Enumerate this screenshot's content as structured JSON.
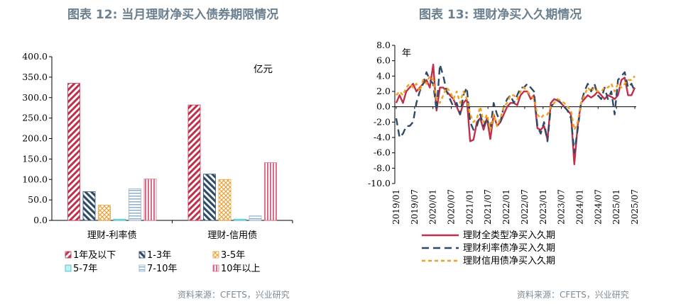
{
  "left_title": "图表 12: 当月理财净买入债券期限情况",
  "right_title": "图表 13: 理财净买入久期情况",
  "left_source": "资料来源：CFETS，兴业研究",
  "right_source": "资料来源：CFETS，兴业研究",
  "chart_data": [
    {
      "type": "bar",
      "title": "当月理财净买入债券期限情况",
      "unit_label": "亿元",
      "categories": [
        "理财-利率债",
        "理财-信用债"
      ],
      "ylim": [
        0,
        400
      ],
      "yticks": [
        "400.0",
        "350.0",
        "300.0",
        "250.0",
        "200.0",
        "150.0",
        "100.0",
        "50.0",
        "0.0"
      ],
      "series": [
        {
          "name": "1年及以下",
          "values": [
            335,
            282
          ],
          "color": "#c0304a",
          "pattern": "diag-red"
        },
        {
          "name": "1-3年",
          "values": [
            70,
            113
          ],
          "color": "#2f4a66",
          "pattern": "diag-navy"
        },
        {
          "name": "3-5年",
          "values": [
            37,
            100
          ],
          "color": "#e8a23a",
          "pattern": "cross-orange"
        },
        {
          "name": "5-7年",
          "values": [
            3,
            3
          ],
          "color": "#35b8c8",
          "pattern": "solid-cyan"
        },
        {
          "name": "7-10年",
          "values": [
            77,
            11
          ],
          "color": "#8fb0cc",
          "pattern": "hline-blue"
        },
        {
          "name": "10年以上",
          "values": [
            101,
            141
          ],
          "color": "#e06a86",
          "pattern": "vline-pink"
        }
      ]
    },
    {
      "type": "line",
      "title": "理财净买入久期情况",
      "ylabel": "年",
      "ylim": [
        -10,
        8
      ],
      "yticks": [
        "8.0",
        "6.0",
        "4.0",
        "2.0",
        "0.0",
        "-2.0",
        "-4.0",
        "-6.0",
        "-8.0",
        "-10.0"
      ],
      "xticks": [
        "2019/01",
        "2019/07",
        "2020/01",
        "2020/07",
        "2021/01",
        "2021/07",
        "2022/01",
        "2022/07",
        "2023/01",
        "2023/07",
        "2024/01",
        "2024/07",
        "2025/01",
        "2025/07"
      ],
      "series": [
        {
          "name": "理财全类型净买入久期",
          "color": "#c0304a",
          "dash": "solid",
          "values": [
            0.5,
            1.5,
            0.5,
            2,
            2.5,
            3,
            2,
            2.5,
            3,
            3.5,
            2.5,
            5.5,
            -0.5,
            2.5,
            2.5,
            2,
            1.5,
            1,
            0,
            -1,
            0.5,
            1,
            -4.5,
            -4.3,
            -2,
            -1.5,
            -3,
            -1.5,
            -4.2,
            -1,
            -2.5,
            -2,
            -1,
            0,
            0.5,
            0.5,
            0.2,
            1.5,
            2,
            2,
            1,
            1.5,
            -2.8,
            -3,
            -2.5,
            -4.3,
            0.5,
            1,
            0.8,
            0.5,
            0,
            -0.5,
            -1,
            -7.5,
            -2.5,
            0.5,
            1,
            1.5,
            1.2,
            1.5,
            2,
            1.5,
            1,
            1.5,
            1.3,
            1,
            1.5,
            3.5,
            3.8,
            1.5,
            1.5,
            2.5
          ]
        },
        {
          "name": "理财利率债净买入久期",
          "color": "#2f4a66",
          "dash": "long",
          "values": [
            -1.5,
            -4,
            -3.5,
            -2.5,
            -2.5,
            -2,
            0.5,
            2,
            3,
            4.5,
            3.5,
            3,
            -0.5,
            5.5,
            4,
            2,
            1,
            0,
            0.5,
            -1,
            1.5,
            2.5,
            -2,
            -3,
            -2.5,
            -1,
            -2.5,
            -1.5,
            -3,
            0.5,
            -1,
            -2,
            0,
            1,
            1.5,
            0.5,
            1.5,
            2.5,
            2.5,
            3,
            2.5,
            2,
            -2.5,
            -3.5,
            -2,
            -4.5,
            0,
            0.5,
            1,
            0.5,
            0,
            -0.5,
            -1.5,
            -6,
            -3,
            0.5,
            2,
            3,
            2,
            3,
            1.5,
            1,
            2.5,
            1,
            2,
            -1,
            3.5,
            4,
            4.5,
            2.5,
            3,
            2
          ]
        },
        {
          "name": "理财信用债净买入久期",
          "color": "#f0a020",
          "dash": "short",
          "values": [
            1.5,
            2,
            1.5,
            2.5,
            3,
            2.5,
            3,
            2,
            3.5,
            3,
            4,
            3.5,
            1,
            0.5,
            1.5,
            2.5,
            2,
            1,
            2,
            0.5,
            2,
            1,
            -1,
            -2,
            -1.5,
            0,
            -2,
            -1,
            -3,
            -1,
            -2.5,
            -1.5,
            0,
            0.5,
            1.5,
            1.5,
            1,
            2,
            2.5,
            2,
            1.5,
            1,
            -1,
            -1.5,
            -1,
            -1,
            0,
            0.5,
            1,
            0.8,
            0.5,
            0,
            -0.5,
            -3,
            -2,
            0.5,
            1.5,
            2.5,
            2,
            2.5,
            2,
            2,
            2.5,
            2.5,
            3,
            2,
            3,
            2.5,
            3,
            3.5,
            3.5,
            4
          ]
        }
      ]
    }
  ]
}
